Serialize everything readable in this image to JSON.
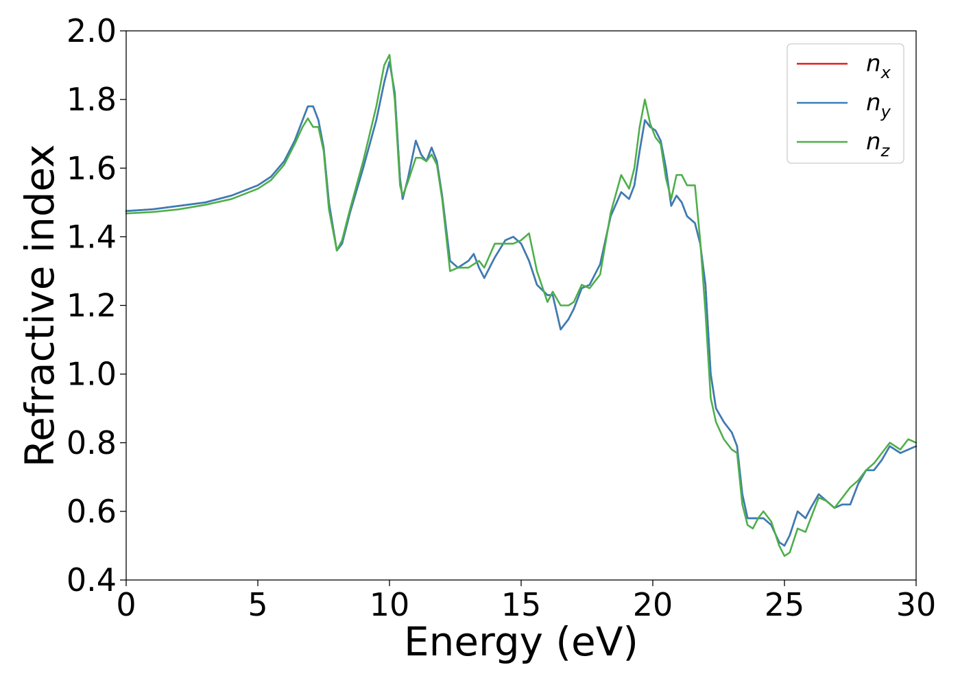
{
  "chart_data": {
    "type": "line",
    "xlabel": "Energy (eV)",
    "ylabel": "Refractive index",
    "xlim": [
      0,
      30
    ],
    "ylim": [
      0.4,
      2.0
    ],
    "xticks": [
      "0",
      "5",
      "10",
      "15",
      "20",
      "25",
      "30"
    ],
    "yticks": [
      "0.4",
      "0.6",
      "0.8",
      "1.0",
      "1.2",
      "1.4",
      "1.6",
      "1.8",
      "2.0"
    ],
    "grid": false,
    "legend_position": "top-right",
    "series": [
      {
        "name": "n",
        "subscript": "x",
        "color": "#e41a1c",
        "x": [
          0,
          1,
          2,
          3,
          4,
          5,
          5.5,
          6,
          6.4,
          6.7,
          6.9,
          7.1,
          7.3,
          7.5,
          7.7,
          8.0,
          8.2,
          8.5,
          9.0,
          9.5,
          9.8,
          10.0,
          10.2,
          10.4,
          10.5,
          10.7,
          11.0,
          11.2,
          11.4,
          11.6,
          11.8,
          12.0,
          12.3,
          12.6,
          13.0,
          13.2,
          13.4,
          13.6,
          14.0,
          14.4,
          14.7,
          15.0,
          15.3,
          15.6,
          16.0,
          16.2,
          16.5,
          16.8,
          17.0,
          17.3,
          17.6,
          18.0,
          18.4,
          18.8,
          19.1,
          19.3,
          19.5,
          19.7,
          19.9,
          20.1,
          20.3,
          20.5,
          20.7,
          20.9,
          21.1,
          21.3,
          21.6,
          21.8,
          22.0,
          22.2,
          22.4,
          22.7,
          23.0,
          23.2,
          23.4,
          23.6,
          23.8,
          24.0,
          24.2,
          24.5,
          24.8,
          25.0,
          25.2,
          25.5,
          25.8,
          26.0,
          26.3,
          26.6,
          26.9,
          27.2,
          27.5,
          27.8,
          28.1,
          28.4,
          28.7,
          29.0,
          29.4,
          29.7,
          30.0
        ],
        "values": [
          1.475,
          1.48,
          1.49,
          1.5,
          1.52,
          1.55,
          1.575,
          1.62,
          1.68,
          1.74,
          1.78,
          1.78,
          1.74,
          1.66,
          1.5,
          1.36,
          1.38,
          1.47,
          1.6,
          1.74,
          1.85,
          1.91,
          1.82,
          1.57,
          1.51,
          1.57,
          1.68,
          1.64,
          1.62,
          1.66,
          1.62,
          1.52,
          1.33,
          1.31,
          1.33,
          1.35,
          1.31,
          1.28,
          1.34,
          1.39,
          1.4,
          1.38,
          1.33,
          1.26,
          1.23,
          1.23,
          1.13,
          1.16,
          1.19,
          1.25,
          1.26,
          1.32,
          1.46,
          1.53,
          1.51,
          1.55,
          1.65,
          1.74,
          1.72,
          1.71,
          1.68,
          1.6,
          1.49,
          1.52,
          1.5,
          1.46,
          1.44,
          1.38,
          1.26,
          1.0,
          0.9,
          0.86,
          0.83,
          0.79,
          0.65,
          0.58,
          0.58,
          0.58,
          0.58,
          0.56,
          0.51,
          0.5,
          0.53,
          0.6,
          0.58,
          0.61,
          0.65,
          0.63,
          0.61,
          0.62,
          0.62,
          0.68,
          0.72,
          0.72,
          0.75,
          0.79,
          0.77,
          0.78,
          0.79
        ]
      },
      {
        "name": "n",
        "subscript": "y",
        "color": "#377eb8",
        "x": [
          0,
          1,
          2,
          3,
          4,
          5,
          5.5,
          6,
          6.4,
          6.7,
          6.9,
          7.1,
          7.3,
          7.5,
          7.7,
          8.0,
          8.2,
          8.5,
          9.0,
          9.5,
          9.8,
          10.0,
          10.2,
          10.4,
          10.5,
          10.7,
          11.0,
          11.2,
          11.4,
          11.6,
          11.8,
          12.0,
          12.3,
          12.6,
          13.0,
          13.2,
          13.4,
          13.6,
          14.0,
          14.4,
          14.7,
          15.0,
          15.3,
          15.6,
          16.0,
          16.2,
          16.5,
          16.8,
          17.0,
          17.3,
          17.6,
          18.0,
          18.4,
          18.8,
          19.1,
          19.3,
          19.5,
          19.7,
          19.9,
          20.1,
          20.3,
          20.5,
          20.7,
          20.9,
          21.1,
          21.3,
          21.6,
          21.8,
          22.0,
          22.2,
          22.4,
          22.7,
          23.0,
          23.2,
          23.4,
          23.6,
          23.8,
          24.0,
          24.2,
          24.5,
          24.8,
          25.0,
          25.2,
          25.5,
          25.8,
          26.0,
          26.3,
          26.6,
          26.9,
          27.2,
          27.5,
          27.8,
          28.1,
          28.4,
          28.7,
          29.0,
          29.4,
          29.7,
          30.0
        ],
        "values": [
          1.475,
          1.48,
          1.49,
          1.5,
          1.52,
          1.55,
          1.575,
          1.62,
          1.68,
          1.74,
          1.78,
          1.78,
          1.74,
          1.66,
          1.5,
          1.36,
          1.38,
          1.47,
          1.6,
          1.74,
          1.85,
          1.91,
          1.82,
          1.57,
          1.51,
          1.57,
          1.68,
          1.64,
          1.62,
          1.66,
          1.62,
          1.52,
          1.33,
          1.31,
          1.33,
          1.35,
          1.31,
          1.28,
          1.34,
          1.39,
          1.4,
          1.38,
          1.33,
          1.26,
          1.23,
          1.23,
          1.13,
          1.16,
          1.19,
          1.25,
          1.26,
          1.32,
          1.46,
          1.53,
          1.51,
          1.55,
          1.65,
          1.74,
          1.72,
          1.71,
          1.68,
          1.6,
          1.49,
          1.52,
          1.5,
          1.46,
          1.44,
          1.38,
          1.26,
          1.0,
          0.9,
          0.86,
          0.83,
          0.79,
          0.65,
          0.58,
          0.58,
          0.58,
          0.58,
          0.56,
          0.51,
          0.5,
          0.53,
          0.6,
          0.58,
          0.61,
          0.65,
          0.63,
          0.61,
          0.62,
          0.62,
          0.68,
          0.72,
          0.72,
          0.75,
          0.79,
          0.77,
          0.78,
          0.79
        ]
      },
      {
        "name": "n",
        "subscript": "z",
        "color": "#4daf4a",
        "x": [
          0,
          1,
          2,
          3,
          4,
          5,
          5.5,
          6,
          6.4,
          6.7,
          6.9,
          7.1,
          7.3,
          7.5,
          7.7,
          8.0,
          8.2,
          8.5,
          9.0,
          9.5,
          9.8,
          10.0,
          10.2,
          10.4,
          10.5,
          10.7,
          11.0,
          11.2,
          11.4,
          11.6,
          11.8,
          12.0,
          12.3,
          12.6,
          13.0,
          13.2,
          13.4,
          13.6,
          14.0,
          14.4,
          14.7,
          15.0,
          15.3,
          15.6,
          16.0,
          16.2,
          16.5,
          16.8,
          17.0,
          17.3,
          17.6,
          18.0,
          18.4,
          18.8,
          19.1,
          19.3,
          19.5,
          19.7,
          19.9,
          20.1,
          20.3,
          20.5,
          20.7,
          20.9,
          21.1,
          21.3,
          21.6,
          21.8,
          22.0,
          22.2,
          22.4,
          22.7,
          23.0,
          23.2,
          23.4,
          23.6,
          23.8,
          24.0,
          24.2,
          24.5,
          24.8,
          25.0,
          25.2,
          25.5,
          25.8,
          26.0,
          26.3,
          26.6,
          26.9,
          27.2,
          27.5,
          27.8,
          28.1,
          28.4,
          28.7,
          29.0,
          29.4,
          29.7,
          30.0
        ],
        "values": [
          1.468,
          1.472,
          1.48,
          1.493,
          1.51,
          1.54,
          1.565,
          1.61,
          1.67,
          1.72,
          1.745,
          1.72,
          1.72,
          1.65,
          1.48,
          1.36,
          1.39,
          1.48,
          1.62,
          1.78,
          1.9,
          1.93,
          1.8,
          1.55,
          1.52,
          1.56,
          1.63,
          1.63,
          1.62,
          1.64,
          1.61,
          1.51,
          1.3,
          1.31,
          1.31,
          1.32,
          1.33,
          1.31,
          1.38,
          1.38,
          1.38,
          1.39,
          1.41,
          1.3,
          1.21,
          1.24,
          1.2,
          1.2,
          1.21,
          1.26,
          1.25,
          1.29,
          1.47,
          1.58,
          1.54,
          1.6,
          1.72,
          1.8,
          1.73,
          1.69,
          1.67,
          1.57,
          1.51,
          1.58,
          1.58,
          1.55,
          1.55,
          1.39,
          1.18,
          0.93,
          0.86,
          0.81,
          0.78,
          0.77,
          0.62,
          0.56,
          0.55,
          0.58,
          0.6,
          0.57,
          0.5,
          0.47,
          0.48,
          0.55,
          0.54,
          0.58,
          0.64,
          0.63,
          0.61,
          0.64,
          0.67,
          0.69,
          0.72,
          0.74,
          0.77,
          0.8,
          0.78,
          0.81,
          0.8
        ]
      }
    ]
  }
}
